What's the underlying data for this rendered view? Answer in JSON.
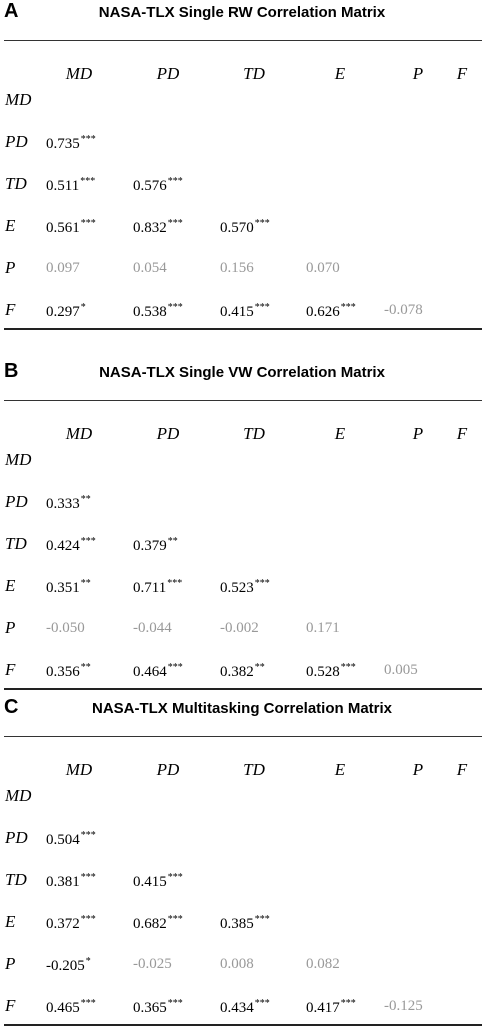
{
  "columns": [
    "MD",
    "PD",
    "TD",
    "E",
    "P",
    "F"
  ],
  "rows": [
    "MD",
    "PD",
    "TD",
    "E",
    "P",
    "F"
  ],
  "panels": [
    {
      "letter": "A",
      "title": "NASA-TLX Single RW Correlation Matrix",
      "cells": [
        [],
        [
          {
            "v": "0.735",
            "s": "***",
            "g": false
          }
        ],
        [
          {
            "v": "0.511",
            "s": "***",
            "g": false
          },
          {
            "v": "0.576",
            "s": "***",
            "g": false
          }
        ],
        [
          {
            "v": "0.561",
            "s": "***",
            "g": false
          },
          {
            "v": "0.832",
            "s": "***",
            "g": false
          },
          {
            "v": "0.570",
            "s": "***",
            "g": false
          }
        ],
        [
          {
            "v": "0.097",
            "s": "",
            "g": true
          },
          {
            "v": "0.054",
            "s": "",
            "g": true
          },
          {
            "v": "0.156",
            "s": "",
            "g": true
          },
          {
            "v": "0.070",
            "s": "",
            "g": true
          }
        ],
        [
          {
            "v": "0.297",
            "s": "*",
            "g": false
          },
          {
            "v": "0.538",
            "s": "***",
            "g": false
          },
          {
            "v": "0.415",
            "s": "***",
            "g": false
          },
          {
            "v": "0.626",
            "s": "***",
            "g": false
          },
          {
            "v": "-0.078",
            "s": "",
            "g": true
          }
        ]
      ]
    },
    {
      "letter": "B",
      "title": "NASA-TLX Single VW Correlation Matrix",
      "cells": [
        [],
        [
          {
            "v": "0.333",
            "s": "**",
            "g": false
          }
        ],
        [
          {
            "v": "0.424",
            "s": "***",
            "g": false
          },
          {
            "v": "0.379",
            "s": "**",
            "g": false
          }
        ],
        [
          {
            "v": "0.351",
            "s": "**",
            "g": false
          },
          {
            "v": "0.711",
            "s": "***",
            "g": false
          },
          {
            "v": "0.523",
            "s": "***",
            "g": false
          }
        ],
        [
          {
            "v": "-0.050",
            "s": "",
            "g": true
          },
          {
            "v": "-0.044",
            "s": "",
            "g": true
          },
          {
            "v": "-0.002",
            "s": "",
            "g": true
          },
          {
            "v": "0.171",
            "s": "",
            "g": true
          }
        ],
        [
          {
            "v": "0.356",
            "s": "**",
            "g": false
          },
          {
            "v": "0.464",
            "s": "***",
            "g": false
          },
          {
            "v": "0.382",
            "s": "**",
            "g": false
          },
          {
            "v": "0.528",
            "s": "***",
            "g": false
          },
          {
            "v": "0.005",
            "s": "",
            "g": true
          }
        ]
      ]
    },
    {
      "letter": "C",
      "title": "NASA-TLX Multitasking Correlation Matrix",
      "cells": [
        [],
        [
          {
            "v": "0.504",
            "s": "***",
            "g": false
          }
        ],
        [
          {
            "v": "0.381",
            "s": "***",
            "g": false
          },
          {
            "v": "0.415",
            "s": "***",
            "g": false
          }
        ],
        [
          {
            "v": "0.372",
            "s": "***",
            "g": false
          },
          {
            "v": "0.682",
            "s": "***",
            "g": false
          },
          {
            "v": "0.385",
            "s": "***",
            "g": false
          }
        ],
        [
          {
            "v": "-0.205",
            "s": "*",
            "g": false
          },
          {
            "v": "-0.025",
            "s": "",
            "g": true
          },
          {
            "v": "0.008",
            "s": "",
            "g": true
          },
          {
            "v": "0.082",
            "s": "",
            "g": true
          }
        ],
        [
          {
            "v": "0.465",
            "s": "***",
            "g": false
          },
          {
            "v": "0.365",
            "s": "***",
            "g": false
          },
          {
            "v": "0.434",
            "s": "***",
            "g": false
          },
          {
            "v": "0.417",
            "s": "***",
            "g": false
          },
          {
            "v": "-0.125",
            "s": "",
            "g": true
          }
        ]
      ]
    }
  ]
}
